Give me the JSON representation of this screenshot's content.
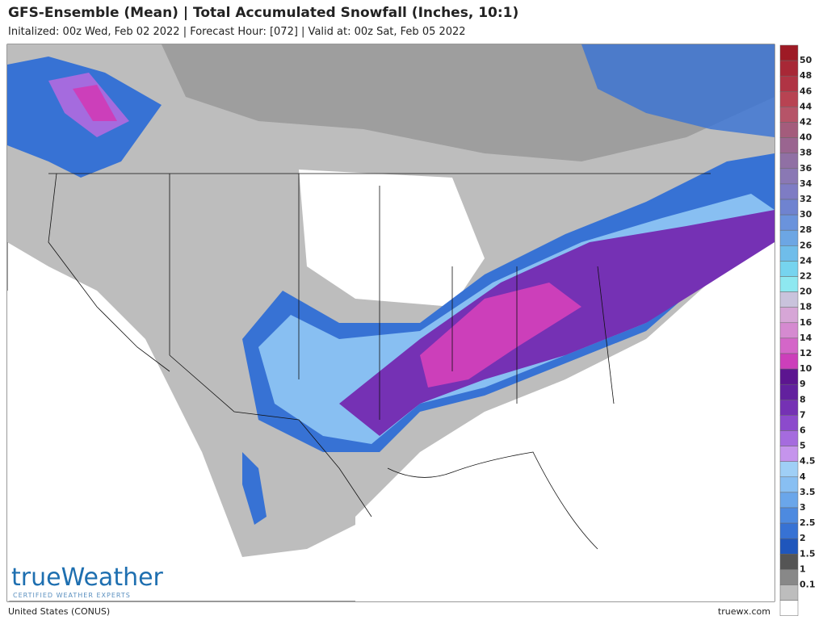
{
  "header": {
    "title": "GFS-Ensemble (Mean) | Total Accumulated Snowfall (Inches, 10:1)",
    "subtitle": "Initalized: 00z Wed, Feb 02 2022 | Forecast Hour: [072] | Valid at: 00z Sat, Feb 05 2022"
  },
  "colorbar": {
    "colors": [
      "#9e1a25",
      "#a82836",
      "#b03444",
      "#b84352",
      "#b65468",
      "#a45c7c",
      "#9a6590",
      "#9070a4",
      "#8a78b4",
      "#7e7cc4",
      "#6f83d0",
      "#6a93dc",
      "#6ca6e4",
      "#6fbdea",
      "#76d4ef",
      "#8ee8f0",
      "#c9c3dc",
      "#d6a6d6",
      "#d58ad0",
      "#d466c8",
      "#cc3fba",
      "#5c1590",
      "#62219e",
      "#7531b4",
      "#8c4acc",
      "#a56bde",
      "#c594ec",
      "#9fcff6",
      "#88bff2",
      "#6aa6ea",
      "#4d8ae0",
      "#3772d4",
      "#1f56bc",
      "#555555",
      "#888888",
      "#bdbdbd",
      "#ffffff"
    ],
    "labels": [
      "50",
      "48",
      "46",
      "44",
      "42",
      "40",
      "38",
      "36",
      "34",
      "32",
      "30",
      "28",
      "26",
      "24",
      "22",
      "20",
      "18",
      "16",
      "14",
      "12",
      "10",
      "9",
      "8",
      "7",
      "6",
      "5",
      "4.5",
      "4",
      "3.5",
      "3",
      "2.5",
      "2",
      "1.5",
      "1",
      "0.1"
    ]
  },
  "logo": {
    "name": "trueWeather",
    "tagline": "CERTIFIED WEATHER EXPERTS"
  },
  "footer": {
    "left": "United States (CONUS)",
    "right": "truewx.com"
  }
}
